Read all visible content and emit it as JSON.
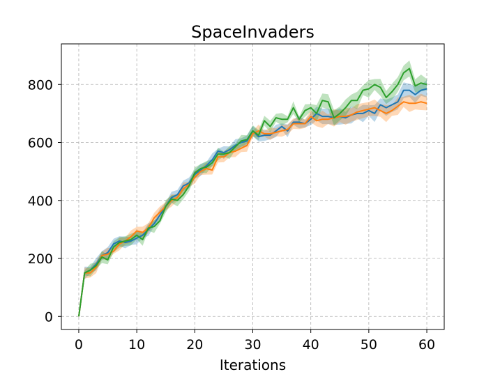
{
  "chart_data": {
    "type": "line",
    "title": "SpaceInvaders",
    "xlabel": "Iterations",
    "ylabel": "",
    "xlim": [
      -3,
      63
    ],
    "ylim": [
      -45,
      940
    ],
    "xticks": [
      0,
      10,
      20,
      30,
      40,
      50,
      60
    ],
    "yticks": [
      0,
      200,
      400,
      600,
      800
    ],
    "grid": true,
    "legend": "none",
    "x": [
      0,
      1,
      2,
      3,
      4,
      5,
      6,
      7,
      8,
      9,
      10,
      11,
      12,
      13,
      14,
      15,
      16,
      17,
      18,
      19,
      20,
      21,
      22,
      23,
      24,
      25,
      26,
      27,
      28,
      29,
      30,
      31,
      32,
      33,
      34,
      35,
      36,
      37,
      38,
      39,
      40,
      41,
      42,
      43,
      44,
      45,
      46,
      47,
      48,
      49,
      50,
      51,
      52,
      53,
      54,
      55,
      56,
      57,
      58,
      59,
      60
    ],
    "series": [
      {
        "color": "#1f77b4",
        "values": [
          0,
          150,
          160,
          180,
          210,
          220,
          250,
          260,
          255,
          260,
          270,
          280,
          300,
          320,
          350,
          380,
          410,
          420,
          450,
          460,
          490,
          505,
          520,
          540,
          570,
          565,
          575,
          590,
          600,
          605,
          640,
          620,
          625,
          625,
          640,
          655,
          640,
          670,
          670,
          665,
          680,
          700,
          690,
          690,
          685,
          690,
          685,
          695,
          700,
          700,
          710,
          700,
          730,
          720,
          730,
          740,
          780,
          780,
          765,
          780,
          785
        ]
      },
      {
        "color": "#ff7f0e",
        "values": [
          0,
          150,
          150,
          170,
          210,
          215,
          225,
          250,
          260,
          275,
          295,
          290,
          305,
          340,
          360,
          380,
          400,
          410,
          440,
          455,
          480,
          500,
          510,
          505,
          550,
          550,
          565,
          570,
          580,
          590,
          630,
          640,
          630,
          630,
          635,
          640,
          645,
          665,
          665,
          665,
          690,
          675,
          680,
          680,
          685,
          690,
          690,
          695,
          705,
          710,
          715,
          720,
          710,
          700,
          710,
          725,
          740,
          735,
          735,
          740,
          735
        ]
      },
      {
        "color": "#2ca02c",
        "values": [
          0,
          150,
          160,
          175,
          205,
          195,
          240,
          255,
          260,
          265,
          280,
          265,
          305,
          310,
          330,
          380,
          405,
          400,
          420,
          450,
          495,
          510,
          515,
          530,
          560,
          560,
          565,
          585,
          605,
          610,
          640,
          625,
          675,
          655,
          685,
          680,
          680,
          720,
          680,
          710,
          720,
          700,
          745,
          740,
          685,
          700,
          720,
          745,
          745,
          780,
          785,
          800,
          790,
          755,
          775,
          800,
          840,
          855,
          795,
          805,
          800
        ]
      }
    ]
  }
}
